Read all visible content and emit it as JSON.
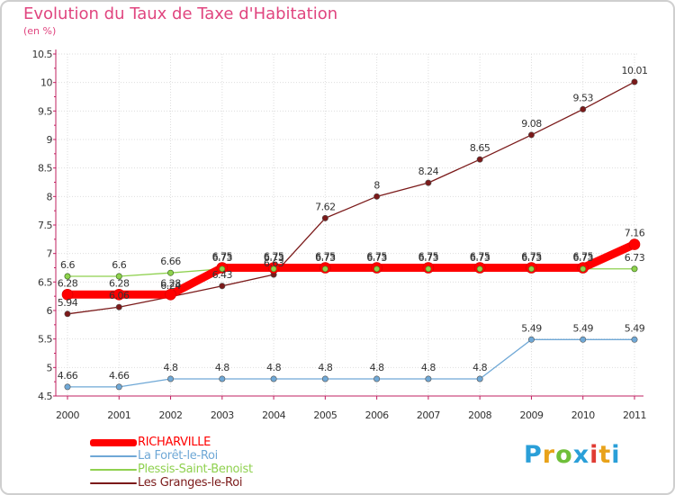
{
  "title": "Evolution du Taux de Taxe d'Habitation",
  "subtitle": "(en %)",
  "logo": {
    "text": "Proxiti",
    "colors": [
      "#2a9fd8",
      "#e8a21a",
      "#6fbf3a",
      "#2a9fd8",
      "#e03c34",
      "#e8a21a",
      "#2a9fd8"
    ]
  },
  "chart_data": {
    "type": "line",
    "title": "Evolution du Taux de Taxe d'Habitation",
    "ylabel": "(en %)",
    "xlabel": "",
    "x": [
      "2000",
      "2001",
      "2002",
      "2003",
      "2004",
      "2005",
      "2006",
      "2007",
      "2008",
      "2009",
      "2010",
      "2011"
    ],
    "ylim": [
      4.5,
      10.5
    ],
    "yticks": [
      "4.5",
      "5",
      "5.5",
      "6",
      "6.5",
      "7",
      "7.5",
      "8",
      "8.5",
      "9",
      "9.5",
      "10",
      "10.5"
    ],
    "grid": true,
    "legend_position": "bottom-left",
    "series": [
      {
        "name": "Les Granges-le-Roi",
        "color": "#7b1a1a",
        "values": [
          5.94,
          6.06,
          6.24,
          6.43,
          6.63,
          7.62,
          8,
          8.24,
          8.65,
          9.08,
          9.53,
          10.01
        ],
        "labels": [
          "5.94",
          "6.06",
          "6.24",
          "6.43",
          "6.63",
          "7.62",
          "8",
          "8.24",
          "8.65",
          "9.08",
          "9.53",
          "10.01"
        ]
      },
      {
        "name": "Plessis-Saint-Benoist",
        "color": "#8fd14f",
        "values": [
          6.6,
          6.6,
          6.66,
          6.73,
          6.73,
          6.73,
          6.73,
          6.73,
          6.73,
          6.73,
          6.73,
          6.73
        ],
        "labels": [
          "6.6",
          "6.6",
          "6.66",
          "6.73",
          "6.73",
          "6.73",
          "6.73",
          "6.73",
          "6.73",
          "6.73",
          "6.73",
          "6.73"
        ]
      },
      {
        "name": "La Forêt-le-Roi",
        "color": "#6fa8d6",
        "values": [
          4.66,
          4.66,
          4.8,
          4.8,
          4.8,
          4.8,
          4.8,
          4.8,
          4.8,
          5.49,
          5.49,
          5.49
        ],
        "labels": [
          "4.66",
          "4.66",
          "4.8",
          "4.8",
          "4.8",
          "4.8",
          "4.8",
          "4.8",
          "4.8",
          "5.49",
          "5.49",
          "5.49"
        ]
      },
      {
        "name": "RICHARVILLE",
        "color": "#ff0000",
        "values": [
          6.28,
          6.28,
          6.28,
          6.75,
          6.75,
          6.75,
          6.75,
          6.75,
          6.75,
          6.75,
          6.75,
          7.16
        ],
        "labels": [
          "6.28",
          "6.28",
          "6.28",
          "6.75",
          "6.75",
          "6.75",
          "6.75",
          "6.75",
          "6.75",
          "6.75",
          "6.75",
          "7.16"
        ]
      }
    ],
    "legend": [
      "RICHARVILLE",
      "La Forêt-le-Roi",
      "Plessis-Saint-Benoist",
      "Les Granges-le-Roi"
    ]
  }
}
